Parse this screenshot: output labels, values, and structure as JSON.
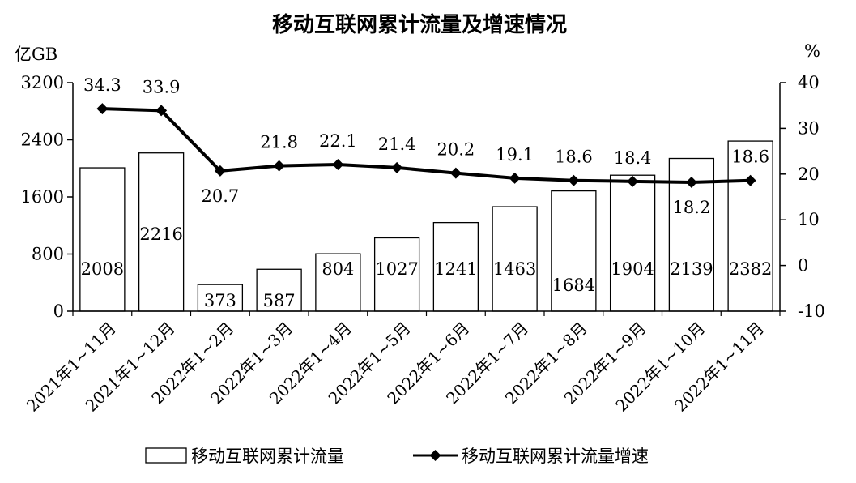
{
  "chart_data": {
    "type": "bar+line",
    "title": "移动互联网累计流量及增速情况",
    "y_left_unit": "亿GB",
    "y_right_unit": "%",
    "y_left_lim": [
      0,
      3200
    ],
    "y_left_ticks": [
      "0",
      "800",
      "1600",
      "2400",
      "3200"
    ],
    "y_right_lim": [
      -10,
      40
    ],
    "y_right_ticks": [
      "-10",
      "0",
      "10",
      "20",
      "30",
      "40"
    ],
    "categories": [
      "2021年1~11月",
      "2021年1~12月",
      "2022年1~2月",
      "2022年1~3月",
      "2022年1~4月",
      "2022年1~5月",
      "2022年1~6月",
      "2022年1~7月",
      "2022年1~8月",
      "2022年1~9月",
      "2022年1~10月",
      "2022年1~11月"
    ],
    "series": [
      {
        "name": "移动互联网累计流量",
        "type": "bar",
        "axis": "left",
        "color": "#ffffff",
        "values": [
          2008,
          2216,
          373,
          587,
          804,
          1027,
          1241,
          1463,
          1684,
          1904,
          2139,
          2382
        ]
      },
      {
        "name": "移动互联网累计流量增速",
        "type": "line",
        "axis": "right",
        "color": "#000000",
        "values": [
          34.3,
          33.9,
          20.7,
          21.8,
          22.1,
          21.4,
          20.2,
          19.1,
          18.6,
          18.4,
          18.2,
          18.6
        ]
      }
    ],
    "grid": false,
    "legend_position": "bottom"
  }
}
